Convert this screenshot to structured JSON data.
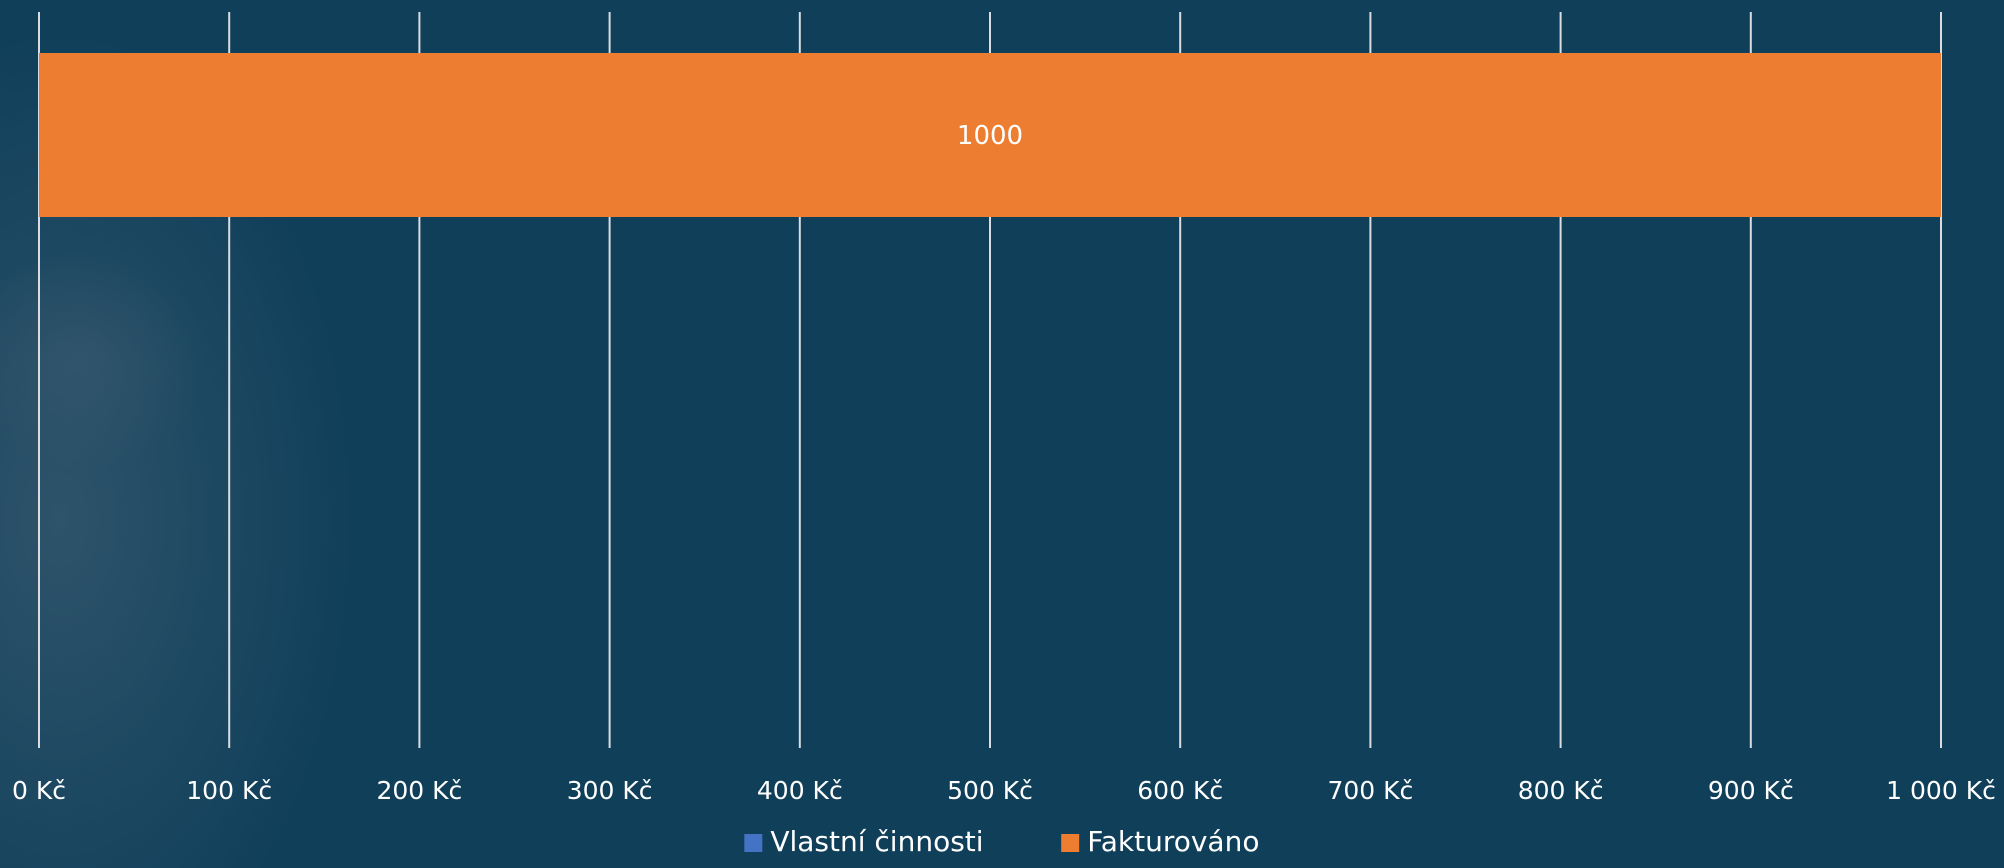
{
  "chart_data": {
    "type": "bar",
    "orientation": "horizontal",
    "categories": [
      ""
    ],
    "series": [
      {
        "name": "Vlastní činnosti",
        "values": [
          0
        ],
        "color": "#4472c4"
      },
      {
        "name": "Fakturováno",
        "values": [
          1000
        ],
        "color": "#ed7d31",
        "data_labels": [
          "1000"
        ]
      }
    ],
    "xlim": [
      0,
      1000
    ],
    "x_ticks": [
      0,
      100,
      200,
      300,
      400,
      500,
      600,
      700,
      800,
      900,
      1000
    ],
    "x_tick_labels": [
      "0 Kč",
      "100 Kč",
      "200 Kč",
      "300 Kč",
      "400 Kč",
      "500 Kč",
      "600 Kč",
      "700 Kč",
      "800 Kč",
      "900 Kč",
      "1 000 Kč"
    ],
    "grid": true,
    "legend_position": "bottom",
    "colors": {
      "background": "#103f5a",
      "gridline": "#d9dde0",
      "text": "#ffffff"
    }
  }
}
